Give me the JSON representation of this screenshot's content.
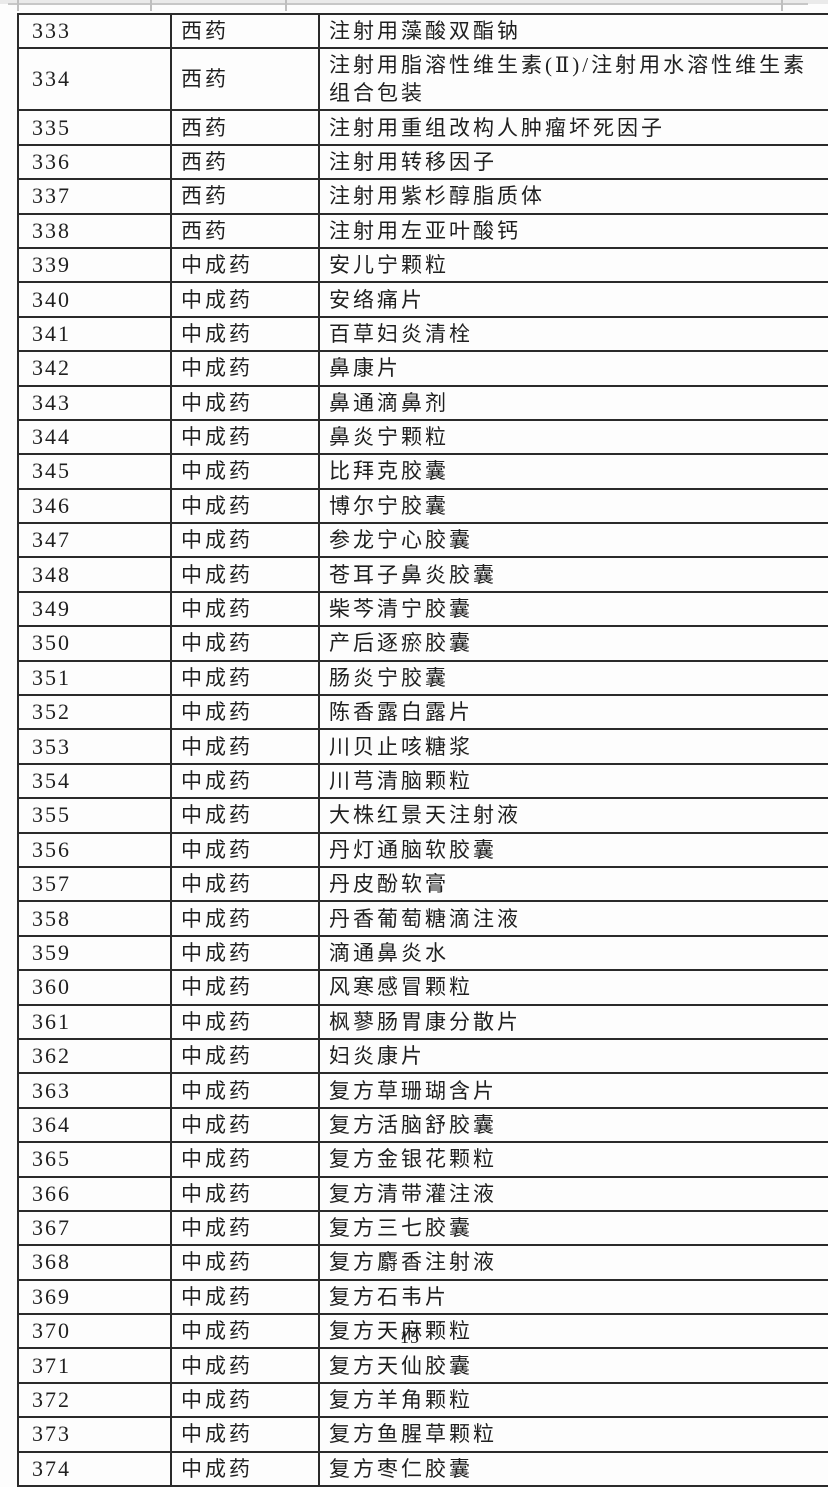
{
  "page": {
    "background": "#fdfdfd",
    "border_color": "#2b2b2b",
    "text_color": "#1f1f1f"
  },
  "table": {
    "rows": [
      {
        "no": "333",
        "category": "西药",
        "name": "注射用藻酸双酯钠"
      },
      {
        "no": "334",
        "category": "西药",
        "name": "注射用脂溶性维生素(Ⅱ)/注射用水溶性维生素组合包装"
      },
      {
        "no": "335",
        "category": "西药",
        "name": "注射用重组改构人肿瘤坏死因子"
      },
      {
        "no": "336",
        "category": "西药",
        "name": "注射用转移因子"
      },
      {
        "no": "337",
        "category": "西药",
        "name": "注射用紫杉醇脂质体"
      },
      {
        "no": "338",
        "category": "西药",
        "name": "注射用左亚叶酸钙"
      },
      {
        "no": "339",
        "category": "中成药",
        "name": "安儿宁颗粒"
      },
      {
        "no": "340",
        "category": "中成药",
        "name": "安络痛片"
      },
      {
        "no": "341",
        "category": "中成药",
        "name": "百草妇炎清栓"
      },
      {
        "no": "342",
        "category": "中成药",
        "name": "鼻康片"
      },
      {
        "no": "343",
        "category": "中成药",
        "name": "鼻通滴鼻剂"
      },
      {
        "no": "344",
        "category": "中成药",
        "name": "鼻炎宁颗粒"
      },
      {
        "no": "345",
        "category": "中成药",
        "name": "比拜克胶囊"
      },
      {
        "no": "346",
        "category": "中成药",
        "name": "博尔宁胶囊"
      },
      {
        "no": "347",
        "category": "中成药",
        "name": "参龙宁心胶囊"
      },
      {
        "no": "348",
        "category": "中成药",
        "name": "苍耳子鼻炎胶囊"
      },
      {
        "no": "349",
        "category": "中成药",
        "name": "柴芩清宁胶囊"
      },
      {
        "no": "350",
        "category": "中成药",
        "name": "产后逐瘀胶囊"
      },
      {
        "no": "351",
        "category": "中成药",
        "name": "肠炎宁胶囊"
      },
      {
        "no": "352",
        "category": "中成药",
        "name": "陈香露白露片"
      },
      {
        "no": "353",
        "category": "中成药",
        "name": "川贝止咳糖浆"
      },
      {
        "no": "354",
        "category": "中成药",
        "name": "川芎清脑颗粒"
      },
      {
        "no": "355",
        "category": "中成药",
        "name": "大株红景天注射液"
      },
      {
        "no": "356",
        "category": "中成药",
        "name": "丹灯通脑软胶囊"
      },
      {
        "no": "357",
        "category": "中成药",
        "name": "丹皮酚软膏"
      },
      {
        "no": "358",
        "category": "中成药",
        "name": "丹香葡萄糖滴注液"
      },
      {
        "no": "359",
        "category": "中成药",
        "name": "滴通鼻炎水"
      },
      {
        "no": "360",
        "category": "中成药",
        "name": "风寒感冒颗粒"
      },
      {
        "no": "361",
        "category": "中成药",
        "name": "枫蓼肠胃康分散片"
      },
      {
        "no": "362",
        "category": "中成药",
        "name": "妇炎康片"
      },
      {
        "no": "363",
        "category": "中成药",
        "name": "复方草珊瑚含片"
      },
      {
        "no": "364",
        "category": "中成药",
        "name": "复方活脑舒胶囊"
      },
      {
        "no": "365",
        "category": "中成药",
        "name": "复方金银花颗粒"
      },
      {
        "no": "366",
        "category": "中成药",
        "name": "复方清带灌注液"
      },
      {
        "no": "367",
        "category": "中成药",
        "name": "复方三七胶囊"
      },
      {
        "no": "368",
        "category": "中成药",
        "name": "复方麝香注射液"
      },
      {
        "no": "369",
        "category": "中成药",
        "name": "复方石韦片"
      },
      {
        "no": "370",
        "category": "中成药",
        "name": "复方天麻颗粒"
      },
      {
        "no": "371",
        "category": "中成药",
        "name": "复方天仙胶囊"
      },
      {
        "no": "372",
        "category": "中成药",
        "name": "复方羊角颗粒"
      },
      {
        "no": "373",
        "category": "中成药",
        "name": "复方鱼腥草颗粒"
      },
      {
        "no": "374",
        "category": "中成药",
        "name": "复方枣仁胶囊"
      }
    ]
  },
  "footer": {
    "page_number": "15"
  }
}
